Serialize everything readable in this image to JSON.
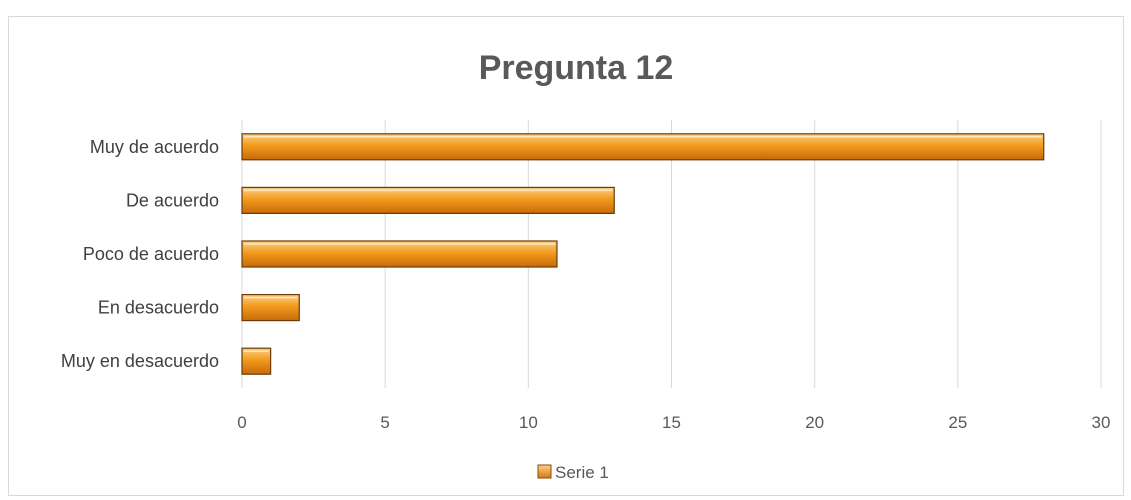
{
  "chart_data": {
    "type": "bar",
    "orientation": "horizontal",
    "title": "Pregunta 12",
    "xlabel": "",
    "ylabel": "",
    "categories": [
      "Muy de acuerdo",
      "De acuerdo",
      "Poco de acuerdo",
      "En desacuerdo",
      "Muy en desacuerdo"
    ],
    "series": [
      {
        "name": "Serie 1",
        "values": [
          28,
          13,
          11,
          2,
          1
        ]
      }
    ],
    "xlim": [
      0,
      30
    ],
    "xticks": [
      "0",
      "5",
      "10",
      "15",
      "20",
      "25",
      "30"
    ],
    "grid": "vertical",
    "legend": "bottom",
    "colors": {
      "bar_light": "#FBD088",
      "bar_mid": "#F29B1C",
      "bar_dark": "#C66A0A",
      "bar_outline": "#6B3A08",
      "gridline": "#D9D9D9",
      "title": "#595959",
      "label": "#404040"
    }
  }
}
